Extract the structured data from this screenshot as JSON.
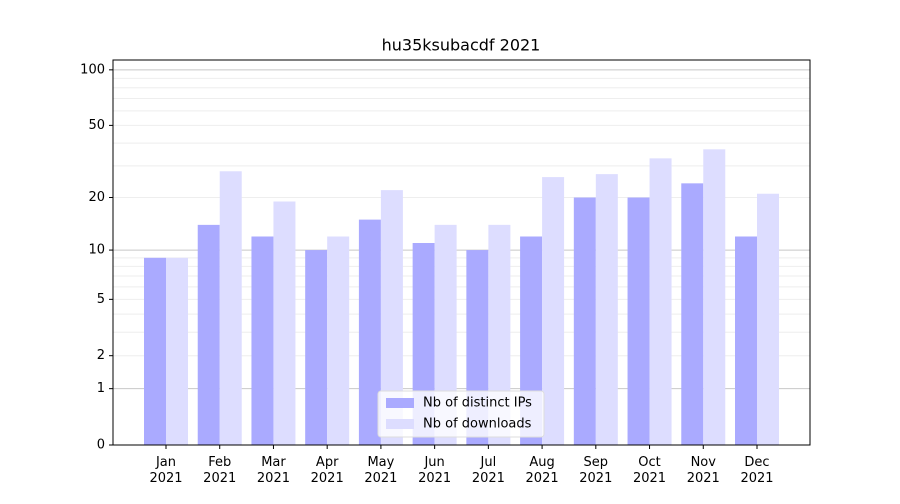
{
  "chart_data": {
    "type": "bar",
    "title": "hu35ksubacdf 2021",
    "categories": [
      "Jan\n2021",
      "Feb\n2021",
      "Mar\n2021",
      "Apr\n2021",
      "May\n2021",
      "Jun\n2021",
      "Jul\n2021",
      "Aug\n2021",
      "Sep\n2021",
      "Oct\n2021",
      "Nov\n2021",
      "Dec\n2021"
    ],
    "series": [
      {
        "name": "Nb of distinct IPs",
        "color": "#aaaaff",
        "values": [
          9,
          14,
          12,
          10,
          15,
          11,
          10,
          12,
          20,
          20,
          24,
          12
        ]
      },
      {
        "name": "Nb of downloads",
        "color": "#ddddff",
        "values": [
          9,
          28,
          19,
          12,
          22,
          14,
          14,
          26,
          27,
          33,
          37,
          21
        ]
      }
    ],
    "y_scale": "log1p",
    "ylim": [
      0,
      113
    ],
    "yticks": [
      0,
      1,
      2,
      5,
      10,
      20,
      50,
      100
    ],
    "y_major_grid": [
      1,
      10,
      100
    ],
    "y_minor_grid": [
      2,
      3,
      4,
      5,
      6,
      7,
      8,
      9,
      20,
      30,
      40,
      50,
      60,
      70,
      80,
      90
    ],
    "legend": "lower center"
  }
}
